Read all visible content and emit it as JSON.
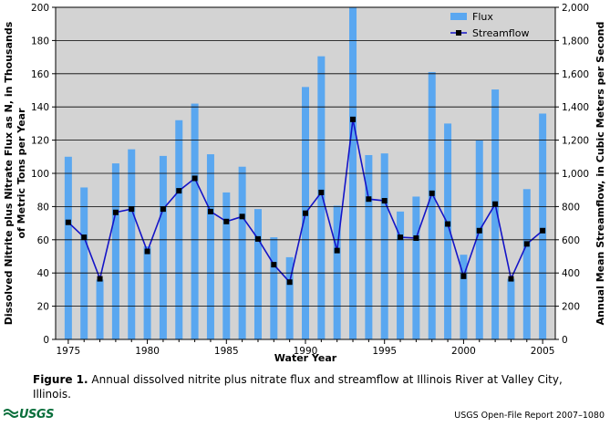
{
  "chart_data": {
    "type": "bar+line",
    "x": [
      1975,
      1976,
      1977,
      1978,
      1979,
      1980,
      1981,
      1982,
      1983,
      1984,
      1985,
      1986,
      1987,
      1988,
      1989,
      1990,
      1991,
      1992,
      1993,
      1994,
      1995,
      1996,
      1997,
      1998,
      1999,
      2000,
      2001,
      2002,
      2003,
      2004,
      2005
    ],
    "series": [
      {
        "name": "Flux",
        "type": "bar",
        "axis": "left",
        "color": "#5aa7f0",
        "values": [
          110,
          91.5,
          36,
          106,
          114.5,
          56,
          110.5,
          132,
          142,
          111.5,
          88.5,
          104,
          78.5,
          61.5,
          49.5,
          152,
          170.5,
          80.5,
          200,
          111,
          112,
          77,
          86,
          161,
          130,
          51,
          120,
          150.5,
          36.5,
          90.5,
          136
        ]
      },
      {
        "name": "Streamflow",
        "type": "line",
        "axis": "right",
        "color": "#1414c8",
        "marker_color": "#000000",
        "values": [
          705,
          615,
          365,
          765,
          785,
          530,
          785,
          895,
          970,
          770,
          710,
          740,
          605,
          450,
          345,
          760,
          885,
          535,
          1325,
          845,
          835,
          615,
          610,
          880,
          695,
          380,
          655,
          815,
          365,
          575,
          655
        ]
      }
    ],
    "xlabel": "Water Year",
    "ylabel_left": "Dissolved Nitrite plus Nitrate Flux as N, in Thousands of Metric Tons per Year",
    "ylabel_left_lines": [
      "Dissolved Nitrite plus Nitrate Flux as N, in Thousands",
      "of Metric Tons per Year"
    ],
    "ylabel_right": "Annual Mean Streamflow, in Cubic Meters per Second",
    "xlim": [
      1974.2,
      2005.8
    ],
    "ylim_left": [
      0,
      200
    ],
    "ylim_right": [
      0,
      2000
    ],
    "xticks": [
      1975,
      1980,
      1985,
      1990,
      1995,
      2000,
      2005
    ],
    "yticks_left": [
      "0",
      "20",
      "40",
      "60",
      "80",
      "100",
      "120",
      "140",
      "160",
      "180",
      "200"
    ],
    "yticks_right": [
      "0",
      "200",
      "400",
      "600",
      "800",
      "1,000",
      "1,200",
      "1,400",
      "1,600",
      "1,800",
      "2,000"
    ],
    "legend": [
      "Flux",
      "Streamflow"
    ],
    "legend_position": "top-right",
    "background_color": "#d3d3d3"
  },
  "caption": {
    "label": "Figure 1.",
    "text": "Annual dissolved nitrite plus nitrate flux and streamflow at Illinois River at Valley City, Illinois."
  },
  "footer": {
    "logo_text": "USGS",
    "report": "USGS Open-File Report 2007–1080"
  }
}
